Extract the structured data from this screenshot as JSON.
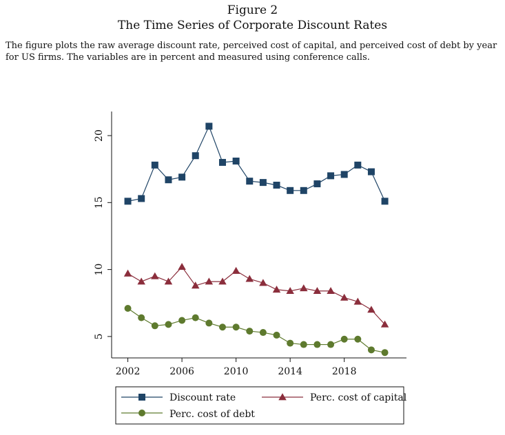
{
  "figure": {
    "label": "Figure 2",
    "title": "The Time Series of Corporate Discount Rates",
    "caption": "The figure plots the raw average discount rate, perceived cost of capital, and perceived cost of debt by year for US firms. The variables are in percent and measured using conference calls."
  },
  "chart_data": {
    "type": "line",
    "x": [
      2002,
      2003,
      2004,
      2005,
      2006,
      2007,
      2008,
      2009,
      2010,
      2011,
      2012,
      2013,
      2014,
      2015,
      2016,
      2017,
      2018,
      2019,
      2020,
      2021
    ],
    "xticks": [
      2002,
      2006,
      2010,
      2014,
      2018
    ],
    "yticks": [
      5,
      10,
      15,
      20
    ],
    "xlim": [
      2000.8,
      2022.6
    ],
    "ylim": [
      3.4,
      21.8
    ],
    "grid": false,
    "legend_position": "bottom",
    "series": [
      {
        "name": "Discount rate",
        "marker": "square",
        "color": "#1f4466",
        "values": [
          15.1,
          15.3,
          17.8,
          16.7,
          16.9,
          18.5,
          20.7,
          18.0,
          18.1,
          16.6,
          16.5,
          16.3,
          15.9,
          15.9,
          16.4,
          17.0,
          17.1,
          17.8,
          17.3,
          15.1
        ]
      },
      {
        "name": "Perc. cost of capital",
        "marker": "triangle",
        "color": "#8b2e3c",
        "values": [
          9.7,
          9.1,
          9.5,
          9.1,
          10.2,
          8.8,
          9.1,
          9.1,
          9.9,
          9.3,
          9.0,
          8.5,
          8.4,
          8.6,
          8.4,
          8.4,
          7.9,
          7.6,
          7.0,
          5.9
        ]
      },
      {
        "name": "Perc. cost of debt",
        "marker": "circle",
        "color": "#5e7a2e",
        "values": [
          7.1,
          6.4,
          5.8,
          5.9,
          6.2,
          6.4,
          6.0,
          5.7,
          5.7,
          5.4,
          5.3,
          5.1,
          4.5,
          4.4,
          4.4,
          4.4,
          4.8,
          4.8,
          4.0,
          3.8
        ]
      }
    ]
  }
}
